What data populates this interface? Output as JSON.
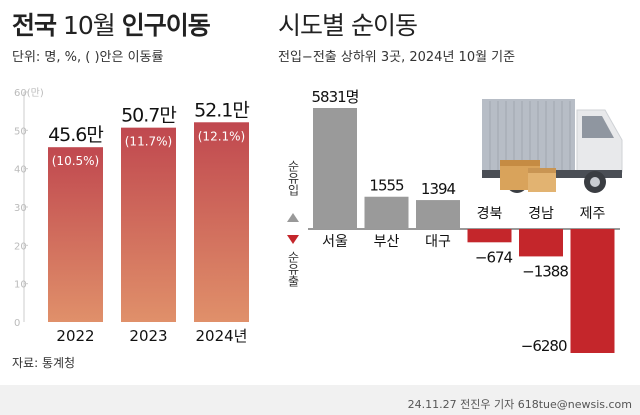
{
  "header": {
    "title_bold1": "전국",
    "title_num": "10월",
    "title_bold2": "인구이동",
    "unit_note": "단위: 명, %, ( )안은 이동률",
    "subtitle": "시도별 순이동",
    "subtitle_note": "전입−전출 상하위 3곳, 2024년 10월 기준"
  },
  "source": "자료: 통계청",
  "credit": "24.11.27 전진우 기자 618tue@newsis.com",
  "chart_data": [
    {
      "type": "bar",
      "title": "전국 10월 인구이동",
      "categories": [
        "2022",
        "2023",
        "2024년"
      ],
      "values": [
        45.6,
        50.7,
        52.1
      ],
      "value_labels": [
        "45.6만",
        "50.7만",
        "52.1만"
      ],
      "rate_labels": [
        "(10.5%)",
        "(11.7%)",
        "(12.1%)"
      ],
      "ylim": [
        0,
        60
      ],
      "yticks": [
        0,
        10,
        20,
        30,
        40,
        50,
        60
      ],
      "ytick_labels": [
        "0",
        "10",
        "20",
        "30",
        "40",
        "50",
        "60(만)"
      ],
      "grid": true,
      "colors": {
        "top": "#c0484f",
        "bottom": "#e0906a",
        "tick": "#bbbbbb"
      }
    },
    {
      "type": "bar",
      "title": "시도별 순이동",
      "categories": [
        "서울",
        "부산",
        "대구",
        "경북",
        "경남",
        "제주"
      ],
      "values": [
        5831,
        1555,
        1394,
        -674,
        -1388,
        -6280
      ],
      "value_labels": [
        "5831명",
        "1555",
        "1394",
        "−674",
        "−1388",
        "−6280"
      ],
      "axis_labels": {
        "positive": "순유입",
        "negative": "순유출"
      },
      "ylim": [
        -6280,
        5831
      ],
      "colors": {
        "positive": "#9a9a9a",
        "negative": "#c4262b",
        "arrow": "#c4262b"
      }
    }
  ]
}
